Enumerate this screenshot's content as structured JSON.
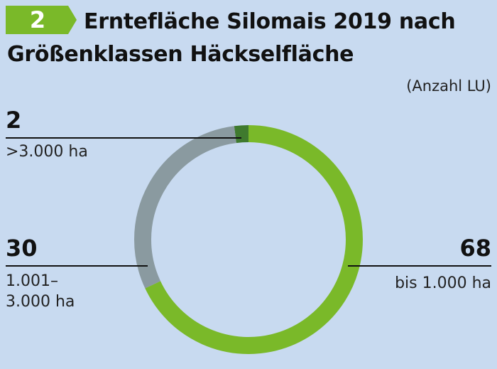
{
  "header": {
    "number": "2",
    "title": "Erntefläche Silomais 2019 nach Größenklassen Häckselfläche",
    "unit": "(Anzahl LU)"
  },
  "colors": {
    "background": "#c8daf0",
    "badge": "#7ab929",
    "gt3000": "#3f7a2e",
    "mid": "#8a9aa0",
    "le1000": "#7ab929"
  },
  "chart_data": {
    "type": "pie",
    "donut": true,
    "title": "Erntefläche Silomais 2019 nach Größenklassen Häckselfläche",
    "unit": "(Anzahl LU)",
    "slices": [
      {
        "value": 2,
        "value_label": "2",
        "label": ">3.000 ha",
        "color": "#3f7a2e"
      },
      {
        "value": 68,
        "value_label": "68",
        "label": "bis 1.000 ha",
        "color": "#7ab929"
      },
      {
        "value": 30,
        "value_label": "30",
        "label_lines": [
          "1.001–",
          "3.000 ha"
        ],
        "color": "#8a9aa0"
      }
    ]
  }
}
